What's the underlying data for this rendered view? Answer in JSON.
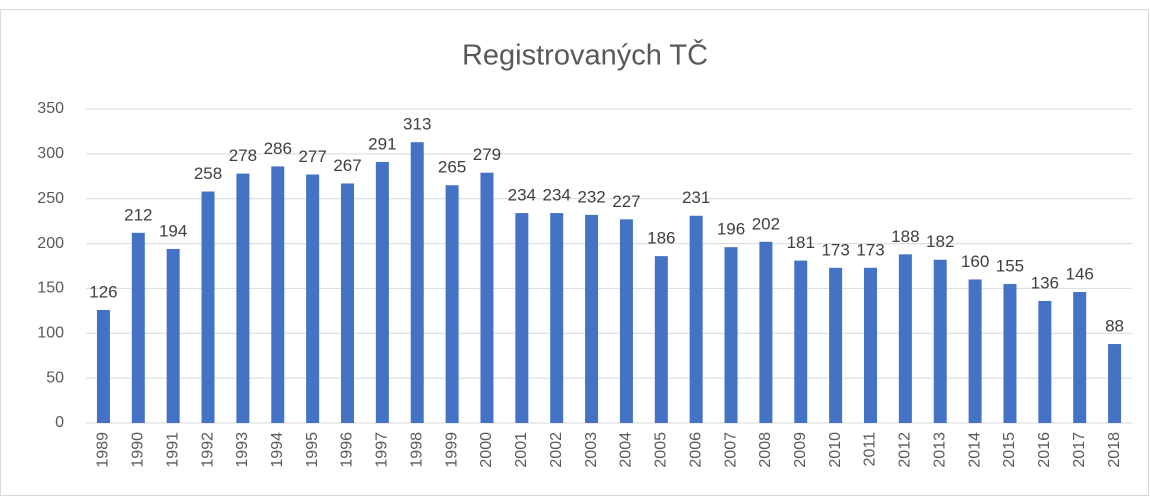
{
  "chart_data": {
    "type": "bar",
    "title": "Registrovaných TČ",
    "categories": [
      "1989",
      "1990",
      "1991",
      "1992",
      "1993",
      "1994",
      "1995",
      "1996",
      "1997",
      "1998",
      "1999",
      "2000",
      "2001",
      "2002",
      "2003",
      "2004",
      "2005",
      "2006",
      "2007",
      "2008",
      "2009",
      "2010",
      "2011",
      "2012",
      "2013",
      "2014",
      "2015",
      "2016",
      "2017",
      "2018"
    ],
    "values": [
      126,
      212,
      194,
      258,
      278,
      286,
      277,
      267,
      291,
      313,
      265,
      279,
      234,
      234,
      232,
      227,
      186,
      231,
      196,
      202,
      181,
      173,
      173,
      188,
      182,
      160,
      155,
      136,
      146,
      88
    ],
    "color": "#4472c4",
    "ylim": [
      0,
      350
    ],
    "yticks": [
      0,
      50,
      100,
      150,
      200,
      250,
      300,
      350
    ],
    "grid": true
  }
}
